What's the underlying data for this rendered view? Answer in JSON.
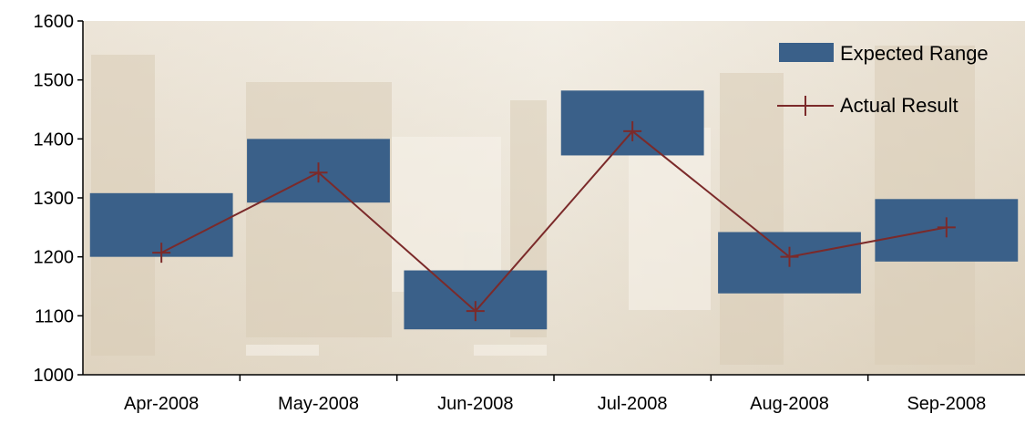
{
  "chart_data": {
    "type": "line",
    "categories": [
      "Apr-2008",
      "May-2008",
      "Jun-2008",
      "Jul-2008",
      "Aug-2008",
      "Sep-2008"
    ],
    "series": [
      {
        "name": "Expected Range",
        "kind": "floating-bar",
        "color": "#3a6089",
        "low": [
          1200,
          1292,
          1077,
          1372,
          1138,
          1192
        ],
        "high": [
          1308,
          1400,
          1177,
          1482,
          1242,
          1298
        ]
      },
      {
        "name": "Actual Result",
        "kind": "line",
        "color": "#7b2a2a",
        "marker": "plus",
        "values": [
          1207,
          1343,
          1108,
          1413,
          1200,
          1250
        ]
      }
    ],
    "ylim": [
      1000,
      1600
    ],
    "yticks": [
      1000,
      1100,
      1200,
      1300,
      1400,
      1500,
      1600
    ],
    "legend_position": "top-right",
    "background": "photo of a store aisle, sepia tone",
    "grid": false
  }
}
